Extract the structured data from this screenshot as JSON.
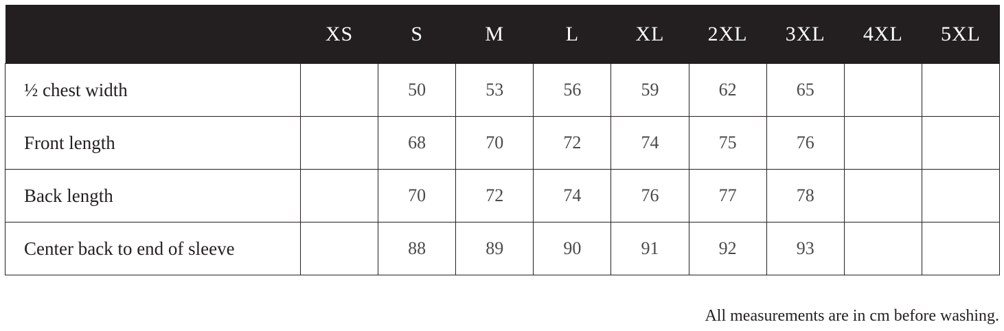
{
  "table": {
    "headers": [
      "",
      "XS",
      "S",
      "M",
      "L",
      "XL",
      "2XL",
      "3XL",
      "4XL",
      "5XL"
    ],
    "rows": [
      {
        "label": "½ chest width",
        "values": [
          "",
          "50",
          "53",
          "56",
          "59",
          "62",
          "65",
          "",
          ""
        ]
      },
      {
        "label": "Front length",
        "values": [
          "",
          "68",
          "70",
          "72",
          "74",
          "75",
          "76",
          "",
          ""
        ]
      },
      {
        "label": "Back length",
        "values": [
          "",
          "70",
          "72",
          "74",
          "76",
          "77",
          "78",
          "",
          ""
        ]
      },
      {
        "label": "Center back to end of sleeve",
        "values": [
          "",
          "88",
          "89",
          "90",
          "91",
          "92",
          "93",
          "",
          ""
        ]
      }
    ]
  },
  "footnote": "All measurements are in cm before washing.",
  "colors": {
    "header_bg": "#231f20",
    "header_text": "#ffffff"
  }
}
